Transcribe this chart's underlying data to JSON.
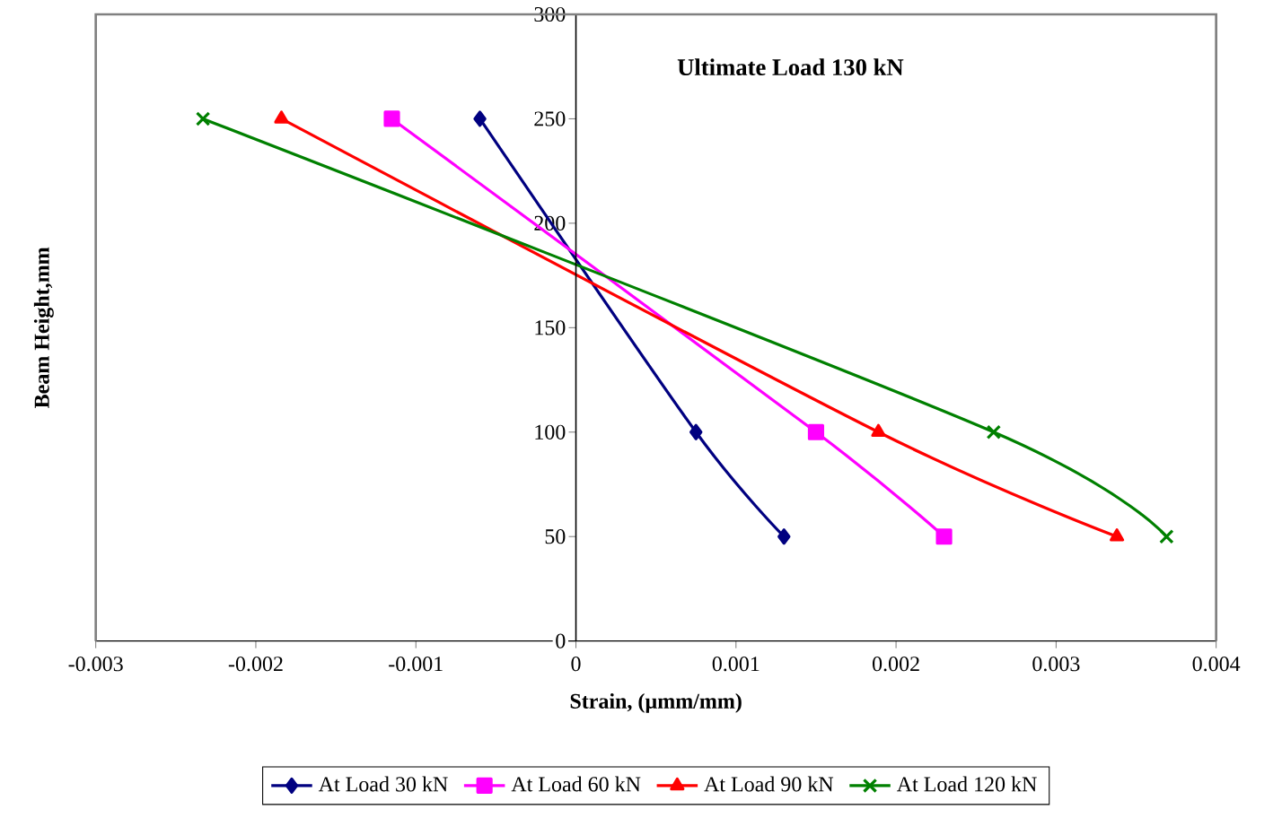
{
  "chart_data": {
    "type": "line",
    "title": "Ultimate Load 130 kN",
    "xlabel": "Strain, (µmm/mm)",
    "ylabel": "Beam Height,mm",
    "xlim": [
      -0.003,
      0.004
    ],
    "xticks": [
      -0.003,
      -0.002,
      -0.001,
      0,
      0.001,
      0.002,
      0.003,
      0.004
    ],
    "ylim": [
      0,
      300
    ],
    "yticks": [
      0,
      50,
      100,
      150,
      200,
      250,
      300
    ],
    "grid": false,
    "legend": "bottom",
    "line_style": "solid",
    "series": [
      {
        "name": "At Load 30 kN",
        "color": "#000080",
        "marker": "diamond",
        "x": [
          -0.0006,
          0.00075,
          0.0013
        ],
        "values": [
          250,
          100,
          50
        ]
      },
      {
        "name": "At Load 60 kN",
        "color": "#ff00ff",
        "marker": "square",
        "x": [
          -0.00115,
          0.0015,
          0.0023
        ],
        "values": [
          250,
          100,
          50
        ]
      },
      {
        "name": "At Load 90 kN",
        "color": "#ff0000",
        "marker": "triangle",
        "x": [
          -0.00184,
          0.00189,
          0.00338
        ],
        "values": [
          250,
          100,
          50
        ]
      },
      {
        "name": "At Load 120 kN",
        "color": "#008000",
        "marker": "cross",
        "x": [
          -0.00233,
          0.00261,
          0.00369
        ],
        "values": [
          250,
          100,
          50
        ]
      }
    ]
  }
}
